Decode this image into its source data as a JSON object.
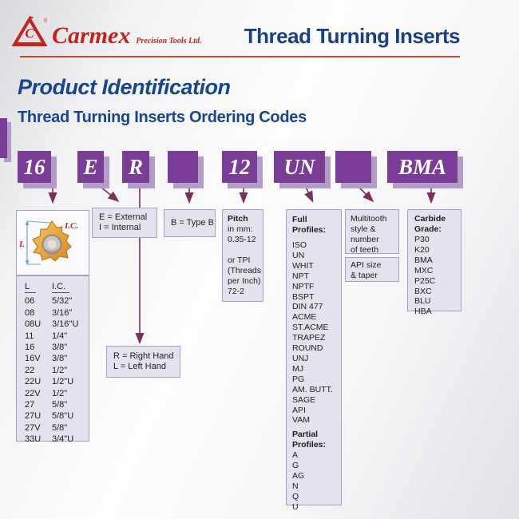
{
  "header": {
    "brand": "Carmex",
    "brand_sub": "Precision Tools Ltd.",
    "registered": "®",
    "title": "Thread Turning Inserts"
  },
  "headings": {
    "main": "Product Identification",
    "sub": "Thread Turning Inserts Ordering Codes"
  },
  "code_boxes": [
    {
      "label": "16"
    },
    {
      "label": "E"
    },
    {
      "label": "R"
    },
    {
      "label": ""
    },
    {
      "label": "12"
    },
    {
      "label": "UN"
    },
    {
      "label": ""
    },
    {
      "label": "BMA"
    }
  ],
  "explanations": {
    "size": {
      "diagram_labels": {
        "l": "L",
        "ic": "I.C."
      },
      "table": {
        "headers": [
          "L",
          "I.C."
        ],
        "rows": [
          [
            "06",
            "5/32\""
          ],
          [
            "08",
            "3/16\""
          ],
          [
            "08U",
            "3/16\"U"
          ],
          [
            "11",
            "1/4\""
          ],
          [
            "16",
            "3/8\""
          ],
          [
            "16V",
            "3/8\""
          ],
          [
            "22",
            "1/2\""
          ],
          [
            "22U",
            "1/2\"U"
          ],
          [
            "22V",
            "1/2\""
          ],
          [
            "27",
            "5/8\""
          ],
          [
            "27U",
            "5/8\"U"
          ],
          [
            "27V",
            "5/8\""
          ],
          [
            "33U",
            "3/4\"U"
          ]
        ]
      }
    },
    "internal_external": {
      "text": "E = External\nI = Internal"
    },
    "type": {
      "text": "B = Type B"
    },
    "hand": {
      "text": "R = Right Hand\nL = Left Hand"
    },
    "pitch": {
      "title": "Pitch",
      "body": "in mm:\n0.35-12\n \nor TPI\n(Threads\nper Inch)\n72-2"
    },
    "profiles": {
      "full_title": "Full\nProfiles:",
      "full": [
        "ISO",
        "UN",
        "WHIT",
        "NPT",
        "NPTF",
        "BSPT",
        "DIN 477",
        "ACME",
        "ST.ACME",
        "TRAPEZ",
        "ROUND",
        "UNJ",
        "MJ",
        "PG",
        "AM. BUTT.",
        "SAGE",
        "API",
        "VAM"
      ],
      "partial_title": "Partial\nProfiles:",
      "partial": [
        "A",
        "G",
        "AG",
        "N",
        "Q",
        "U"
      ]
    },
    "multitooth": {
      "text": "Multitooth\nstyle &\nnumber\nof teeth"
    },
    "api": {
      "text": "API size\n& taper"
    },
    "carbide": {
      "title": "Carbide\nGrade:",
      "grades": [
        "P30",
        "K20",
        "BMA",
        "MXC",
        "P25C",
        "BXC",
        "BLU",
        "HBA"
      ]
    }
  },
  "colors": {
    "purple": "#7a3c96",
    "purple_shadow": "#b49cc9",
    "arrow": "#7c2f5d",
    "navy": "#17458f",
    "brand_red": "#c2251f",
    "rule_red": "#c04a35",
    "box_bg": "#e4e2ee",
    "box_border": "#a59fc1"
  }
}
